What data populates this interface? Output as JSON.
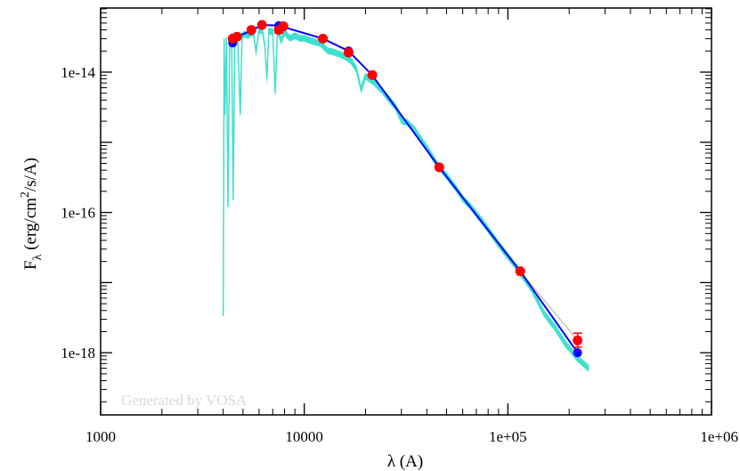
{
  "chart_data": {
    "type": "scatter",
    "title": "",
    "xlabel": "λ (A)",
    "ylabel": "F_λ (erg/cm^2/s/A)",
    "ylabel_parts": {
      "main": "F",
      "sub": "λ",
      "unit_a": " (erg/cm",
      "sup": "2",
      "unit_b": "/s/A)"
    },
    "x_scale": "log",
    "y_scale": "log",
    "xlim": [
      1000,
      1000000
    ],
    "ylim": [
      1.3e-19,
      8.2e-14
    ],
    "x_ticks": [
      {
        "value": 1000,
        "label": "1000"
      },
      {
        "value": 10000,
        "label": "10000"
      },
      {
        "value": 100000,
        "label": "1e+05"
      },
      {
        "value": 1000000,
        "label": "1e+06"
      }
    ],
    "y_ticks": [
      {
        "value": 1e-14,
        "label": "1e-14"
      },
      {
        "value": 1e-16,
        "label": "1e-16"
      },
      {
        "value": 1e-18,
        "label": "1e-18"
      }
    ],
    "grid": false,
    "watermark": "Generated by VOSA",
    "colors": {
      "spectrum": "#40e0d0",
      "model": "#0000ff",
      "observed": "#ff0000",
      "ir_line": "#c0c0c0"
    },
    "series": [
      {
        "kind": "spectrum",
        "points": [
          [
            4000,
            3.3e-18
          ],
          [
            4040,
            3e-14
          ],
          [
            4080,
            2.5e-15
          ],
          [
            4150,
            3.1e-14
          ],
          [
            4220,
            1.2e-16
          ],
          [
            4300,
            2.8e-14
          ],
          [
            4400,
            3.2e-14
          ],
          [
            4480,
            1.5e-16
          ],
          [
            4560,
            3.3e-14
          ],
          [
            4700,
            3.4e-14
          ],
          [
            4850,
            2.5e-15
          ],
          [
            4950,
            3.6e-14
          ],
          [
            5100,
            3.8e-14
          ],
          [
            5300,
            3.6e-14
          ],
          [
            5450,
            3.9e-14
          ],
          [
            5600,
            4e-14
          ],
          [
            5800,
            2e-14
          ],
          [
            6000,
            4.2e-14
          ],
          [
            6200,
            4.3e-14
          ],
          [
            6400,
            2.5e-14
          ],
          [
            6563,
            8e-15
          ],
          [
            6700,
            4.2e-14
          ],
          [
            7000,
            4.1e-14
          ],
          [
            7200,
            5e-15
          ],
          [
            7400,
            4.2e-14
          ],
          [
            7700,
            3e-14
          ],
          [
            8000,
            4e-14
          ],
          [
            8500,
            3.3e-14
          ],
          [
            9000,
            3.6e-14
          ],
          [
            9500,
            3.3e-14
          ],
          [
            10000,
            3.3e-14
          ],
          [
            11000,
            3e-14
          ],
          [
            12000,
            2.8e-14
          ],
          [
            13000,
            2.2e-14
          ],
          [
            14000,
            2.1e-14
          ],
          [
            15000,
            1.95e-14
          ],
          [
            16000,
            1.8e-14
          ],
          [
            17000,
            1.55e-14
          ],
          [
            18000,
            1.2e-14
          ],
          [
            19000,
            6e-15
          ],
          [
            20000,
            9.5e-15
          ],
          [
            22000,
            7.8e-15
          ],
          [
            24000,
            6e-15
          ],
          [
            26000,
            4.5e-15
          ],
          [
            28000,
            3.5e-15
          ],
          [
            30000,
            2.2e-15
          ],
          [
            32000,
            2.1e-15
          ],
          [
            35000,
            1.6e-15
          ],
          [
            40000,
            9e-16
          ],
          [
            45000,
            5.2e-16
          ],
          [
            50000,
            3.6e-16
          ],
          [
            55000,
            2.5e-16
          ],
          [
            60000,
            1.7e-16
          ],
          [
            65000,
            1.35e-16
          ],
          [
            75000,
            8e-17
          ],
          [
            90000,
            3.8e-17
          ],
          [
            110000,
            1.8e-17
          ],
          [
            130000,
            9e-18
          ],
          [
            150000,
            4e-18
          ],
          [
            170000,
            2.5e-18
          ],
          [
            190000,
            1.5e-18
          ],
          [
            220000,
            9e-19
          ],
          [
            250000,
            6.5e-19
          ]
        ]
      },
      {
        "kind": "model",
        "name": "",
        "points": [
          [
            4450,
            2.6e-14
          ],
          [
            4680,
            3.2e-14
          ],
          [
            5500,
            3.9e-14
          ],
          [
            6200,
            4.7e-14
          ],
          [
            7500,
            4.6e-14
          ],
          [
            7900,
            4.4e-14
          ],
          [
            12350,
            3e-14
          ],
          [
            16500,
            2e-14
          ],
          [
            21600,
            9e-15
          ],
          [
            46000,
            4.4e-16
          ],
          [
            115000,
            1.45e-17
          ],
          [
            220000,
            1e-18
          ]
        ]
      },
      {
        "kind": "observed",
        "name": "",
        "points": [
          {
            "x": 4450,
            "y": 3e-14,
            "yerr_low": 3e-14,
            "yerr_high": 3e-14
          },
          {
            "x": 4680,
            "y": 3.2e-14,
            "yerr_low": 3.2e-14,
            "yerr_high": 3.2e-14
          },
          {
            "x": 5500,
            "y": 4e-14,
            "yerr_low": 4e-14,
            "yerr_high": 4e-14
          },
          {
            "x": 6200,
            "y": 4.7e-14,
            "yerr_low": 4.7e-14,
            "yerr_high": 4.7e-14
          },
          {
            "x": 7500,
            "y": 4e-14,
            "yerr_low": 3.6e-14,
            "yerr_high": 4.3e-14
          },
          {
            "x": 7900,
            "y": 4.5e-14,
            "yerr_low": 4.5e-14,
            "yerr_high": 4.5e-14
          },
          {
            "x": 12350,
            "y": 3e-14,
            "yerr_low": 3e-14,
            "yerr_high": 3e-14
          },
          {
            "x": 16500,
            "y": 1.9e-14,
            "yerr_low": 1.9e-14,
            "yerr_high": 1.9e-14
          },
          {
            "x": 21600,
            "y": 9.1e-15,
            "yerr_low": 9.1e-15,
            "yerr_high": 9.1e-15
          },
          {
            "x": 46000,
            "y": 4.4e-16,
            "yerr_low": 4.4e-16,
            "yerr_high": 4.4e-16
          },
          {
            "x": 115000,
            "y": 1.45e-17,
            "yerr_low": 1.45e-17,
            "yerr_high": 1.45e-17
          },
          {
            "x": 220000,
            "y": 1.5e-18,
            "yerr_low": 1.2e-18,
            "yerr_high": 1.9e-18
          }
        ]
      },
      {
        "kind": "ir_line",
        "points": [
          [
            115000,
            1.45e-17
          ],
          [
            220000,
            1.5e-18
          ]
        ]
      }
    ]
  }
}
